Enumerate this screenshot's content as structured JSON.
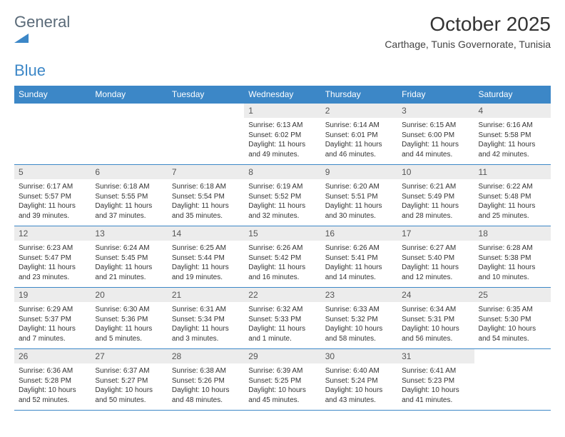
{
  "logo": {
    "general": "General",
    "blue": "Blue"
  },
  "title": "October 2025",
  "subtitle": "Carthage, Tunis Governorate, Tunisia",
  "colors": {
    "accent": "#3c87c7",
    "daynum_bg": "#ececec",
    "text": "#333333",
    "logo_gray": "#5a6a78"
  },
  "day_headers": [
    "Sunday",
    "Monday",
    "Tuesday",
    "Wednesday",
    "Thursday",
    "Friday",
    "Saturday"
  ],
  "weeks": [
    [
      {
        "empty": true
      },
      {
        "empty": true
      },
      {
        "empty": true
      },
      {
        "num": "1",
        "sunrise": "Sunrise: 6:13 AM",
        "sunset": "Sunset: 6:02 PM",
        "daylight1": "Daylight: 11 hours",
        "daylight2": "and 49 minutes."
      },
      {
        "num": "2",
        "sunrise": "Sunrise: 6:14 AM",
        "sunset": "Sunset: 6:01 PM",
        "daylight1": "Daylight: 11 hours",
        "daylight2": "and 46 minutes."
      },
      {
        "num": "3",
        "sunrise": "Sunrise: 6:15 AM",
        "sunset": "Sunset: 6:00 PM",
        "daylight1": "Daylight: 11 hours",
        "daylight2": "and 44 minutes."
      },
      {
        "num": "4",
        "sunrise": "Sunrise: 6:16 AM",
        "sunset": "Sunset: 5:58 PM",
        "daylight1": "Daylight: 11 hours",
        "daylight2": "and 42 minutes."
      }
    ],
    [
      {
        "num": "5",
        "sunrise": "Sunrise: 6:17 AM",
        "sunset": "Sunset: 5:57 PM",
        "daylight1": "Daylight: 11 hours",
        "daylight2": "and 39 minutes."
      },
      {
        "num": "6",
        "sunrise": "Sunrise: 6:18 AM",
        "sunset": "Sunset: 5:55 PM",
        "daylight1": "Daylight: 11 hours",
        "daylight2": "and 37 minutes."
      },
      {
        "num": "7",
        "sunrise": "Sunrise: 6:18 AM",
        "sunset": "Sunset: 5:54 PM",
        "daylight1": "Daylight: 11 hours",
        "daylight2": "and 35 minutes."
      },
      {
        "num": "8",
        "sunrise": "Sunrise: 6:19 AM",
        "sunset": "Sunset: 5:52 PM",
        "daylight1": "Daylight: 11 hours",
        "daylight2": "and 32 minutes."
      },
      {
        "num": "9",
        "sunrise": "Sunrise: 6:20 AM",
        "sunset": "Sunset: 5:51 PM",
        "daylight1": "Daylight: 11 hours",
        "daylight2": "and 30 minutes."
      },
      {
        "num": "10",
        "sunrise": "Sunrise: 6:21 AM",
        "sunset": "Sunset: 5:49 PM",
        "daylight1": "Daylight: 11 hours",
        "daylight2": "and 28 minutes."
      },
      {
        "num": "11",
        "sunrise": "Sunrise: 6:22 AM",
        "sunset": "Sunset: 5:48 PM",
        "daylight1": "Daylight: 11 hours",
        "daylight2": "and 25 minutes."
      }
    ],
    [
      {
        "num": "12",
        "sunrise": "Sunrise: 6:23 AM",
        "sunset": "Sunset: 5:47 PM",
        "daylight1": "Daylight: 11 hours",
        "daylight2": "and 23 minutes."
      },
      {
        "num": "13",
        "sunrise": "Sunrise: 6:24 AM",
        "sunset": "Sunset: 5:45 PM",
        "daylight1": "Daylight: 11 hours",
        "daylight2": "and 21 minutes."
      },
      {
        "num": "14",
        "sunrise": "Sunrise: 6:25 AM",
        "sunset": "Sunset: 5:44 PM",
        "daylight1": "Daylight: 11 hours",
        "daylight2": "and 19 minutes."
      },
      {
        "num": "15",
        "sunrise": "Sunrise: 6:26 AM",
        "sunset": "Sunset: 5:42 PM",
        "daylight1": "Daylight: 11 hours",
        "daylight2": "and 16 minutes."
      },
      {
        "num": "16",
        "sunrise": "Sunrise: 6:26 AM",
        "sunset": "Sunset: 5:41 PM",
        "daylight1": "Daylight: 11 hours",
        "daylight2": "and 14 minutes."
      },
      {
        "num": "17",
        "sunrise": "Sunrise: 6:27 AM",
        "sunset": "Sunset: 5:40 PM",
        "daylight1": "Daylight: 11 hours",
        "daylight2": "and 12 minutes."
      },
      {
        "num": "18",
        "sunrise": "Sunrise: 6:28 AM",
        "sunset": "Sunset: 5:38 PM",
        "daylight1": "Daylight: 11 hours",
        "daylight2": "and 10 minutes."
      }
    ],
    [
      {
        "num": "19",
        "sunrise": "Sunrise: 6:29 AM",
        "sunset": "Sunset: 5:37 PM",
        "daylight1": "Daylight: 11 hours",
        "daylight2": "and 7 minutes."
      },
      {
        "num": "20",
        "sunrise": "Sunrise: 6:30 AM",
        "sunset": "Sunset: 5:36 PM",
        "daylight1": "Daylight: 11 hours",
        "daylight2": "and 5 minutes."
      },
      {
        "num": "21",
        "sunrise": "Sunrise: 6:31 AM",
        "sunset": "Sunset: 5:34 PM",
        "daylight1": "Daylight: 11 hours",
        "daylight2": "and 3 minutes."
      },
      {
        "num": "22",
        "sunrise": "Sunrise: 6:32 AM",
        "sunset": "Sunset: 5:33 PM",
        "daylight1": "Daylight: 11 hours",
        "daylight2": "and 1 minute."
      },
      {
        "num": "23",
        "sunrise": "Sunrise: 6:33 AM",
        "sunset": "Sunset: 5:32 PM",
        "daylight1": "Daylight: 10 hours",
        "daylight2": "and 58 minutes."
      },
      {
        "num": "24",
        "sunrise": "Sunrise: 6:34 AM",
        "sunset": "Sunset: 5:31 PM",
        "daylight1": "Daylight: 10 hours",
        "daylight2": "and 56 minutes."
      },
      {
        "num": "25",
        "sunrise": "Sunrise: 6:35 AM",
        "sunset": "Sunset: 5:30 PM",
        "daylight1": "Daylight: 10 hours",
        "daylight2": "and 54 minutes."
      }
    ],
    [
      {
        "num": "26",
        "sunrise": "Sunrise: 6:36 AM",
        "sunset": "Sunset: 5:28 PM",
        "daylight1": "Daylight: 10 hours",
        "daylight2": "and 52 minutes."
      },
      {
        "num": "27",
        "sunrise": "Sunrise: 6:37 AM",
        "sunset": "Sunset: 5:27 PM",
        "daylight1": "Daylight: 10 hours",
        "daylight2": "and 50 minutes."
      },
      {
        "num": "28",
        "sunrise": "Sunrise: 6:38 AM",
        "sunset": "Sunset: 5:26 PM",
        "daylight1": "Daylight: 10 hours",
        "daylight2": "and 48 minutes."
      },
      {
        "num": "29",
        "sunrise": "Sunrise: 6:39 AM",
        "sunset": "Sunset: 5:25 PM",
        "daylight1": "Daylight: 10 hours",
        "daylight2": "and 45 minutes."
      },
      {
        "num": "30",
        "sunrise": "Sunrise: 6:40 AM",
        "sunset": "Sunset: 5:24 PM",
        "daylight1": "Daylight: 10 hours",
        "daylight2": "and 43 minutes."
      },
      {
        "num": "31",
        "sunrise": "Sunrise: 6:41 AM",
        "sunset": "Sunset: 5:23 PM",
        "daylight1": "Daylight: 10 hours",
        "daylight2": "and 41 minutes."
      },
      {
        "empty": true
      }
    ]
  ]
}
